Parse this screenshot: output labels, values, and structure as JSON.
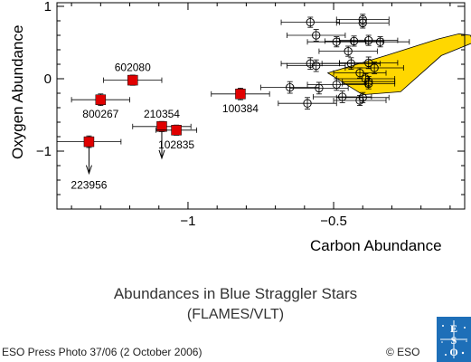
{
  "chart_data": {
    "type": "scatter",
    "xlabel": "Carbon Abundance",
    "ylabel": "Oxygen Abundance",
    "xlim": [
      -1.45,
      -0.05
    ],
    "ylim": [
      -1.8,
      1.05
    ],
    "xticks": [
      {
        "v": -1,
        "label": "−1"
      },
      {
        "v": -0.5,
        "label": "−0.5"
      }
    ],
    "yticks": [
      {
        "v": 1,
        "label": "1"
      },
      {
        "v": 0,
        "label": "0"
      },
      {
        "v": -1,
        "label": "−1"
      }
    ],
    "region": [
      [
        -0.52,
        0.08
      ],
      [
        -0.32,
        0.32
      ],
      [
        -0.14,
        0.55
      ],
      [
        -0.07,
        0.62
      ],
      [
        -0.03,
        0.6
      ],
      [
        -0.02,
        0.5
      ],
      [
        -0.13,
        0.32
      ],
      [
        -0.27,
        -0.18
      ],
      [
        -0.4,
        -0.22
      ]
    ],
    "region_color": "#ffd700",
    "labeled_stars": [
      {
        "name": "602080",
        "x": -1.19,
        "y": -0.02,
        "xerr": 0.1,
        "yerr": 0.07,
        "label_pos": "above"
      },
      {
        "name": "800267",
        "x": -1.3,
        "y": -0.29,
        "xerr": 0.1,
        "yerr": 0.08,
        "label_pos": "below"
      },
      {
        "name": "223956",
        "x": -1.34,
        "y": -0.87,
        "xerr": 0.11,
        "yerr": 0.08,
        "label_pos": "below",
        "upper_limit": true
      },
      {
        "name": "210354",
        "x": -1.09,
        "y": -0.66,
        "xerr": 0.1,
        "yerr": 0.07,
        "label_pos": "above",
        "upper_limit": true
      },
      {
        "name": "102835",
        "x": -1.04,
        "y": -0.71,
        "xerr": 0.07,
        "yerr": 0.07,
        "label_pos": "below"
      },
      {
        "name": "100384",
        "x": -0.82,
        "y": -0.21,
        "xerr": 0.1,
        "yerr": 0.08,
        "label_pos": "below"
      }
    ],
    "marker_color": "#e00000",
    "comparison_stars": [
      {
        "x": -0.58,
        "y": 0.78,
        "xerr": 0.1,
        "yerr": 0.07
      },
      {
        "x": -0.4,
        "y": 0.82,
        "xerr": 0.09,
        "yerr": 0.07
      },
      {
        "x": -0.4,
        "y": 0.77,
        "xerr": 0.09,
        "yerr": 0.07
      },
      {
        "x": -0.56,
        "y": 0.6,
        "xerr": 0.1,
        "yerr": 0.08
      },
      {
        "x": -0.49,
        "y": 0.51,
        "xerr": 0.1,
        "yerr": 0.07
      },
      {
        "x": -0.43,
        "y": 0.52,
        "xerr": 0.1,
        "yerr": 0.07
      },
      {
        "x": -0.38,
        "y": 0.53,
        "xerr": 0.1,
        "yerr": 0.07
      },
      {
        "x": -0.34,
        "y": 0.51,
        "xerr": 0.1,
        "yerr": 0.07
      },
      {
        "x": -0.45,
        "y": 0.38,
        "xerr": 0.1,
        "yerr": 0.07
      },
      {
        "x": -0.58,
        "y": 0.21,
        "xerr": 0.1,
        "yerr": 0.08
      },
      {
        "x": -0.56,
        "y": 0.18,
        "xerr": 0.1,
        "yerr": 0.08
      },
      {
        "x": -0.44,
        "y": 0.21,
        "xerr": 0.1,
        "yerr": 0.08
      },
      {
        "x": -0.38,
        "y": 0.22,
        "xerr": 0.1,
        "yerr": 0.08
      },
      {
        "x": -0.36,
        "y": 0.15,
        "xerr": 0.1,
        "yerr": 0.08
      },
      {
        "x": -0.41,
        "y": 0.08,
        "xerr": 0.09,
        "yerr": 0.07
      },
      {
        "x": -0.39,
        "y": 0.0,
        "xerr": 0.1,
        "yerr": 0.07
      },
      {
        "x": -0.38,
        "y": -0.04,
        "xerr": 0.09,
        "yerr": 0.07
      },
      {
        "x": -0.38,
        "y": -0.07,
        "xerr": 0.09,
        "yerr": 0.07
      },
      {
        "x": -0.49,
        "y": -0.08,
        "xerr": 0.1,
        "yerr": 0.08
      },
      {
        "x": -0.65,
        "y": -0.12,
        "xerr": 0.1,
        "yerr": 0.08
      },
      {
        "x": -0.55,
        "y": -0.13,
        "xerr": 0.1,
        "yerr": 0.08
      },
      {
        "x": -0.47,
        "y": -0.25,
        "xerr": 0.1,
        "yerr": 0.08
      },
      {
        "x": -0.59,
        "y": -0.34,
        "xerr": 0.1,
        "yerr": 0.08
      },
      {
        "x": -0.41,
        "y": -0.3,
        "xerr": 0.09,
        "yerr": 0.07
      },
      {
        "x": -0.4,
        "y": -0.26,
        "xerr": 0.09,
        "yerr": 0.07
      }
    ]
  },
  "caption": {
    "line1": "Abundances in Blue Straggler Stars",
    "line2": "(FLAMES/VLT)"
  },
  "footer": {
    "left": "ESO Press Photo 37/06 (2 October 2006)",
    "right": "© ESO"
  },
  "logo": {
    "letters": [
      "E",
      "S",
      "O"
    ],
    "color": "#1e6fb8"
  }
}
